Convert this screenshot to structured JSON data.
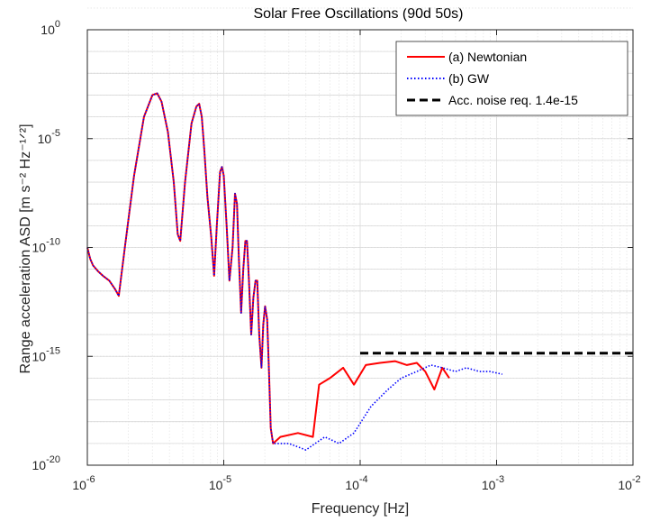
{
  "chart_data": {
    "type": "line",
    "title": "Solar Free Oscillations (90d 50s)",
    "xlabel": "Frequency [Hz]",
    "ylabel": "Range acceleration ASD [m s⁻² Hz⁻¹ᐟ²]",
    "x_scale": "log",
    "y_scale": "log",
    "xlim": [
      1e-06,
      0.01
    ],
    "ylim": [
      1e-20,
      1
    ],
    "grid": true,
    "legend_position": "top-right",
    "x_ticks": [
      {
        "value": 1e-06,
        "base": "10",
        "exp": "-6"
      },
      {
        "value": 1e-05,
        "base": "10",
        "exp": "-5"
      },
      {
        "value": 0.0001,
        "base": "10",
        "exp": "-4"
      },
      {
        "value": 0.001,
        "base": "10",
        "exp": "-3"
      },
      {
        "value": 0.01,
        "base": "10",
        "exp": "-2"
      }
    ],
    "y_ticks": [
      {
        "value": 1e-20,
        "base": "10",
        "exp": "-20"
      },
      {
        "value": 1e-15,
        "base": "10",
        "exp": "-15"
      },
      {
        "value": 1e-10,
        "base": "10",
        "exp": "-10"
      },
      {
        "value": 1e-05,
        "base": "10",
        "exp": "-5"
      },
      {
        "value": 1,
        "base": "10",
        "exp": "0"
      }
    ],
    "series": [
      {
        "name": "(a) Newtonian",
        "color": "#ff0000",
        "style": "solid",
        "x": [
          1e-06,
          1.05e-06,
          1.1e-06,
          1.2e-06,
          1.3e-06,
          1.45e-06,
          1.6e-06,
          1.7e-06,
          1.9e-06,
          2.2e-06,
          2.6e-06,
          3e-06,
          3.25e-06,
          3.5e-06,
          3.9e-06,
          4.3e-06,
          4.6e-06,
          4.8e-06,
          5.2e-06,
          5.8e-06,
          6.3e-06,
          6.6e-06,
          6.9e-06,
          7.2e-06,
          7.6e-06,
          8.1e-06,
          8.5e-06,
          8.9e-06,
          9.4e-06,
          9.7e-06,
          1e-05,
          1.05e-05,
          1.1e-05,
          1.16e-05,
          1.21e-05,
          1.25e-05,
          1.29e-05,
          1.34e-05,
          1.39e-05,
          1.44e-05,
          1.48e-05,
          1.53e-05,
          1.59e-05,
          1.65e-05,
          1.71e-05,
          1.76e-05,
          1.82e-05,
          1.89e-05,
          1.95e-05,
          2.01e-05,
          2.08e-05,
          2.14e-05,
          2.21e-05,
          2.3e-05,
          2.6e-05,
          3.5e-05,
          4.5e-05,
          5e-05,
          6e-05,
          7.5e-05,
          9e-05,
          0.00011,
          0.00014,
          0.00018,
          0.00022,
          0.00026,
          0.0003,
          0.00035,
          0.0004,
          0.00045
        ],
        "y": [
          1e-10,
          3e-11,
          1.5e-11,
          8e-12,
          5e-12,
          3e-12,
          1.2e-12,
          6e-13,
          1.5e-10,
          2e-07,
          0.0001,
          0.001,
          0.0012,
          0.0005,
          2e-05,
          1e-07,
          4e-10,
          2e-10,
          1e-07,
          5e-05,
          0.0003,
          0.0004,
          0.0001,
          3e-06,
          2e-08,
          3e-10,
          5e-12,
          1e-09,
          3e-07,
          5e-07,
          2e-07,
          1e-09,
          3e-12,
          1e-10,
          3e-08,
          1e-08,
          3e-11,
          1e-13,
          1e-11,
          2e-10,
          2e-10,
          3e-12,
          1e-14,
          5e-13,
          3e-12,
          3e-12,
          1e-14,
          3e-16,
          3e-14,
          2e-13,
          5e-14,
          3e-16,
          5e-19,
          1e-19,
          2e-19,
          3e-19,
          2e-19,
          5e-17,
          1e-16,
          3e-16,
          5e-17,
          4e-16,
          5e-16,
          6e-16,
          4e-16,
          5e-16,
          2e-16,
          3e-17,
          3e-16,
          1e-16
        ]
      },
      {
        "name": "(b) GW",
        "color": "#0000ff",
        "style": "dotted",
        "x": [
          1e-06,
          1.05e-06,
          1.1e-06,
          1.2e-06,
          1.3e-06,
          1.45e-06,
          1.6e-06,
          1.7e-06,
          1.9e-06,
          2.2e-06,
          2.6e-06,
          3e-06,
          3.25e-06,
          3.5e-06,
          3.9e-06,
          4.3e-06,
          4.6e-06,
          4.8e-06,
          5.2e-06,
          5.8e-06,
          6.3e-06,
          6.6e-06,
          6.9e-06,
          7.2e-06,
          7.6e-06,
          8.1e-06,
          8.5e-06,
          8.9e-06,
          9.4e-06,
          9.7e-06,
          1e-05,
          1.05e-05,
          1.1e-05,
          1.16e-05,
          1.21e-05,
          1.25e-05,
          1.29e-05,
          1.34e-05,
          1.39e-05,
          1.44e-05,
          1.48e-05,
          1.53e-05,
          1.59e-05,
          1.65e-05,
          1.71e-05,
          1.76e-05,
          1.82e-05,
          1.89e-05,
          1.95e-05,
          2.01e-05,
          2.08e-05,
          2.14e-05,
          2.21e-05,
          2.3e-05,
          3e-05,
          4e-05,
          5.5e-05,
          7e-05,
          9e-05,
          0.00012,
          0.00016,
          0.0002,
          0.00026,
          0.00033,
          0.0004,
          0.0005,
          0.0006,
          0.00075,
          0.0009,
          0.0011
        ],
        "y": [
          1e-10,
          3e-11,
          1.5e-11,
          8e-12,
          5e-12,
          3e-12,
          1.2e-12,
          6e-13,
          1.5e-10,
          2e-07,
          0.0001,
          0.001,
          0.0012,
          0.0005,
          2e-05,
          1e-07,
          4e-10,
          2e-10,
          1e-07,
          5e-05,
          0.0003,
          0.0004,
          0.0001,
          3e-06,
          2e-08,
          3e-10,
          5e-12,
          1e-09,
          3e-07,
          5e-07,
          2e-07,
          1e-09,
          3e-12,
          1e-10,
          3e-08,
          1e-08,
          3e-11,
          1e-13,
          1e-11,
          2e-10,
          2e-10,
          3e-12,
          1e-14,
          5e-13,
          3e-12,
          3e-12,
          1e-14,
          3e-16,
          3e-14,
          2e-13,
          5e-14,
          3e-16,
          5e-19,
          1e-19,
          1e-19,
          5e-20,
          2e-19,
          1e-19,
          3e-19,
          5e-18,
          3e-17,
          1e-16,
          2e-16,
          4e-16,
          3e-16,
          2e-16,
          3e-16,
          2e-16,
          2e-16,
          1.5e-16
        ]
      },
      {
        "name": "Acc. noise req. 1.4e-15",
        "color": "#000000",
        "style": "dashed",
        "x": [
          0.0001,
          0.01
        ],
        "y": [
          1.4e-15,
          1.4e-15
        ]
      }
    ]
  }
}
